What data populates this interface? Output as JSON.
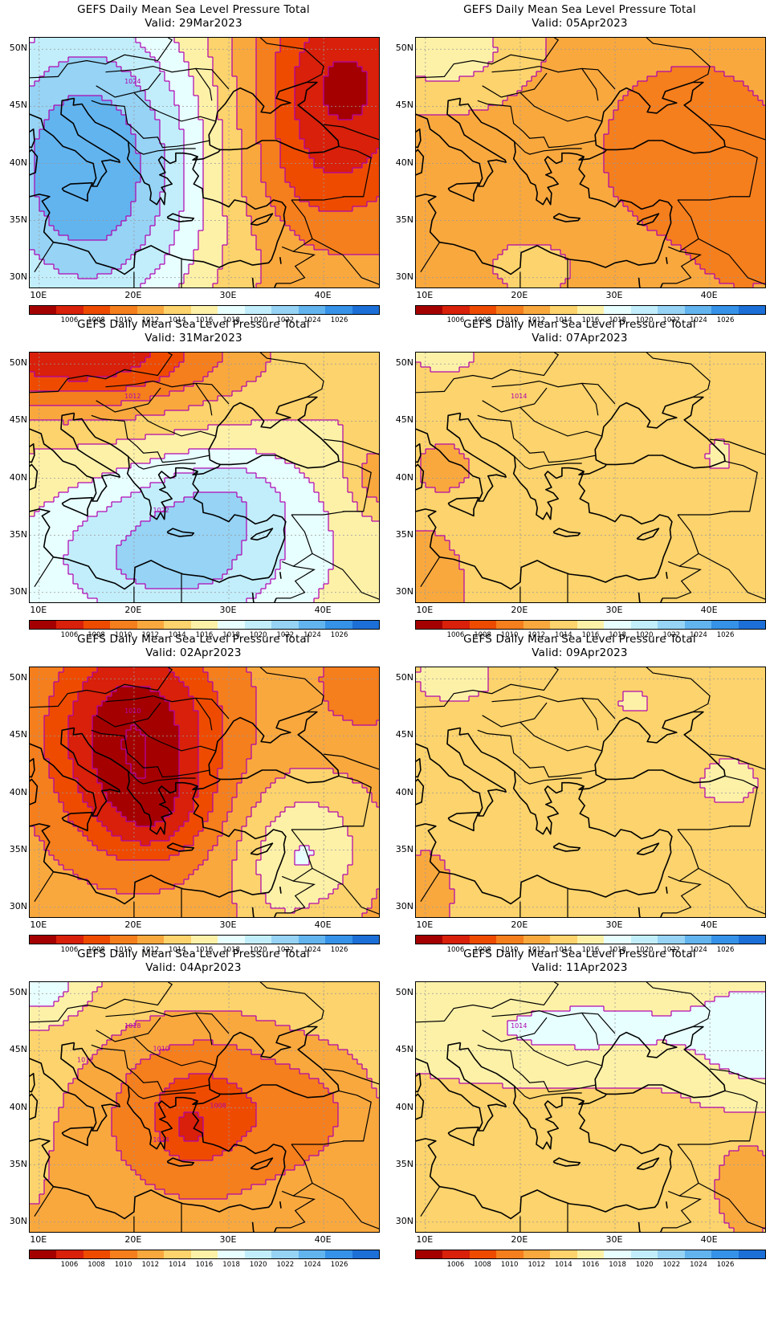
{
  "title": "GEFS Daily Mean Sea Level Pressure Total",
  "panels": [
    {
      "valid": "Valid: 29Mar2023",
      "regime": "high_west",
      "labels": [
        "1024"
      ]
    },
    {
      "valid": "Valid: 05Apr2023",
      "regime": "low_east",
      "labels": []
    },
    {
      "valid": "Valid: 31Mar2023",
      "regime": "high_south",
      "labels": [
        "1012",
        "1022"
      ]
    },
    {
      "valid": "Valid: 07Apr2023",
      "regime": "flat_yellow",
      "labels": [
        "1014"
      ]
    },
    {
      "valid": "Valid: 02Apr2023",
      "regime": "low_nw",
      "labels": [
        "1010"
      ]
    },
    {
      "valid": "Valid: 09Apr2023",
      "regime": "flat_pale",
      "labels": []
    },
    {
      "valid": "Valid: 04Apr2023",
      "regime": "low_center",
      "labels": [
        "1018",
        "1014",
        "1012",
        "1010",
        "1008"
      ]
    },
    {
      "valid": "Valid: 11Apr2023",
      "regime": "high_north",
      "labels": [
        "1014"
      ]
    }
  ],
  "lat_labels": [
    "50N",
    "45N",
    "40N",
    "35N",
    "30N"
  ],
  "lon_labels": [
    "10E",
    "20E",
    "30E",
    "40E"
  ],
  "colorbar": {
    "colors": [
      "#a50000",
      "#d8200a",
      "#ee4b00",
      "#f57e1d",
      "#f9a83e",
      "#fcd36c",
      "#fdf1a8",
      "#e8ffff",
      "#c2eefb",
      "#96d3f5",
      "#62b4ef",
      "#3592e8",
      "#1c6fd6"
    ],
    "labels": [
      "1006",
      "1008",
      "1010",
      "1012",
      "1014",
      "1016",
      "1018",
      "1020",
      "1022",
      "1024",
      "1026"
    ]
  },
  "colors": {
    "contour": "#b000b0",
    "coast": "#000000"
  }
}
